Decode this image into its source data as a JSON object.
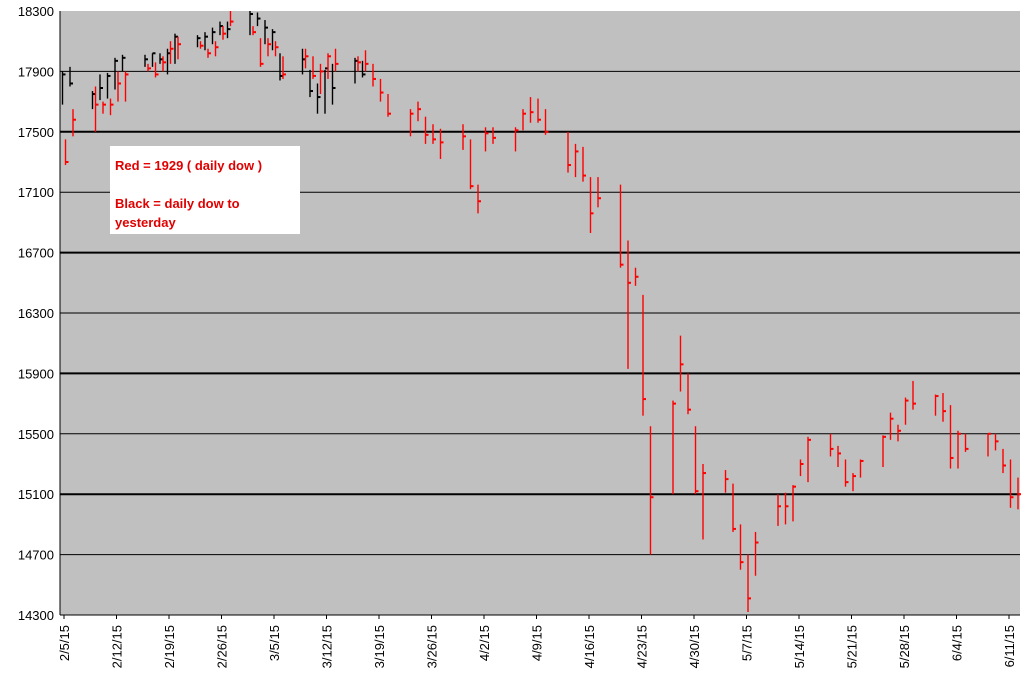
{
  "chart_data": {
    "type": "ohlc",
    "annotations": [
      "Red = 1929 ( daily dow )",
      "Black = daily dow to yesterday"
    ],
    "categories": [
      "2/5/15",
      null,
      null,
      null,
      null,
      "2/12/15",
      null,
      null,
      null,
      null,
      "2/19/15",
      null,
      null,
      null,
      null,
      "2/26/15",
      null,
      null,
      null,
      null,
      "3/5/15",
      null,
      null,
      null,
      null,
      "3/12/15",
      null,
      null,
      null,
      null,
      "3/19/15",
      null,
      null,
      null,
      null,
      "3/26/15",
      null,
      null,
      null,
      null,
      "4/2/15",
      null,
      null,
      null,
      null,
      "4/9/15",
      null,
      null,
      null,
      null,
      "4/16/15",
      null,
      null,
      null,
      null,
      "4/23/15",
      null,
      null,
      null,
      null,
      "4/30/15",
      null,
      null,
      null,
      null,
      "5/7/15",
      null,
      null,
      null,
      null,
      "5/14/15",
      null,
      null,
      null,
      null,
      "5/21/15",
      null,
      null,
      null,
      null,
      "5/28/15",
      null,
      null,
      null,
      null,
      "6/4/15",
      null,
      null,
      null,
      null,
      "6/11/15",
      null
    ],
    "series": [
      {
        "color": "#ff0000",
        "high": [
          17450,
          17650,
          17800,
          17700,
          17720,
          17900,
          17900,
          17950,
          17960,
          18000,
          18100,
          18130,
          18100,
          18050,
          18100,
          18200,
          18300,
          18200,
          18120,
          18120,
          18100,
          18000,
          18050,
          18000,
          17950,
          18020,
          18050,
          18000,
          18040,
          17950,
          17850,
          17750,
          17650,
          17700,
          17600,
          17550,
          17520,
          17550,
          17450,
          17150,
          17530,
          17530,
          17530,
          17650,
          17730,
          17720,
          17650,
          17500,
          17420,
          17400,
          17200,
          17200,
          17150,
          16780,
          16600,
          16420,
          15550,
          15720,
          16150,
          15900,
          15550,
          15300,
          15260,
          15170,
          14900,
          14700,
          14850,
          15100,
          15110,
          15160,
          15330,
          15480,
          15500,
          15420,
          15330,
          15240,
          15330,
          15490,
          15640,
          15560,
          15740,
          15850,
          15760,
          15770,
          15690,
          15520,
          15500,
          15500,
          15500,
          15400,
          15330,
          15210
        ],
        "low": [
          17280,
          17470,
          17500,
          17620,
          17610,
          17700,
          17700,
          17900,
          17860,
          17900,
          17950,
          17980,
          18050,
          17990,
          18000,
          18110,
          18200,
          18140,
          17930,
          18000,
          18000,
          17850,
          17920,
          17850,
          17750,
          17850,
          17900,
          17900,
          17900,
          17800,
          17700,
          17600,
          17470,
          17570,
          17420,
          17420,
          17320,
          17380,
          17120,
          16960,
          17370,
          17420,
          17370,
          17510,
          17560,
          17560,
          17480,
          17230,
          17200,
          17170,
          16830,
          17000,
          16600,
          15930,
          16480,
          15620,
          14700,
          15100,
          15780,
          15630,
          15100,
          14800,
          15110,
          14850,
          14600,
          14320,
          14560,
          14890,
          14900,
          14920,
          15220,
          15180,
          15350,
          15280,
          15150,
          15120,
          15210,
          15280,
          15460,
          15450,
          15560,
          15660,
          15620,
          15580,
          15270,
          15270,
          15380,
          15350,
          15390,
          15240,
          15010,
          15000
        ],
        "close": [
          17300,
          17580,
          17680,
          17680,
          17680,
          17820,
          17880,
          17920,
          17880,
          17960,
          18050,
          18080,
          18070,
          18020,
          18060,
          18150,
          18230,
          18160,
          17950,
          18080,
          18060,
          17880,
          18000,
          17870,
          17900,
          18000,
          17950,
          17960,
          17950,
          17850,
          17760,
          17620,
          17620,
          17650,
          17480,
          17450,
          17430,
          17470,
          17140,
          17040,
          17490,
          17460,
          17510,
          17620,
          17630,
          17580,
          17500,
          17280,
          17370,
          17210,
          16960,
          17060,
          16620,
          16500,
          16540,
          15730,
          15080,
          15700,
          15960,
          15660,
          15120,
          15240,
          15200,
          14870,
          14650,
          14410,
          14780,
          15020,
          15020,
          15150,
          15300,
          15460,
          15400,
          15370,
          15180,
          15220,
          15320,
          15480,
          15600,
          15520,
          15720,
          15700,
          15750,
          15650,
          15340,
          15500,
          15400,
          15500,
          15450,
          15290,
          15080,
          15100
        ]
      },
      {
        "color": "#000000",
        "high": [
          17900,
          17930,
          17770,
          17880,
          17890,
          17990,
          18010,
          18010,
          18020,
          18020,
          18050,
          18150,
          18140,
          18160,
          18190,
          18230,
          18230,
          18300,
          18290,
          18240,
          18180,
          18020,
          18050,
          17910,
          17820,
          17910,
          17950,
          17990,
          17970,
          null,
          null,
          null,
          null,
          null,
          null,
          null,
          null,
          null,
          null,
          null,
          null,
          null,
          null,
          null,
          null,
          null,
          null,
          null,
          null,
          null,
          null,
          null,
          null,
          null,
          null,
          null,
          null,
          null,
          null,
          null,
          null,
          null,
          null,
          null,
          null,
          null,
          null,
          null,
          null,
          null,
          null,
          null,
          null,
          null,
          null,
          null,
          null,
          null,
          null,
          null,
          null,
          null,
          null,
          null,
          null,
          null,
          null,
          null,
          null,
          null,
          null,
          null
        ],
        "low": [
          17680,
          17800,
          17650,
          17710,
          17720,
          17780,
          17900,
          17930,
          17930,
          17950,
          17880,
          17950,
          18060,
          18040,
          18080,
          18140,
          18120,
          18140,
          18200,
          18080,
          18040,
          17840,
          17880,
          17730,
          17620,
          17620,
          17680,
          17820,
          17860,
          null,
          null,
          null,
          null,
          null,
          null,
          null,
          null,
          null,
          null,
          null,
          null,
          null,
          null,
          null,
          null,
          null,
          null,
          null,
          null,
          null,
          null,
          null,
          null,
          null,
          null,
          null,
          null,
          null,
          null,
          null,
          null,
          null,
          null,
          null,
          null,
          null,
          null,
          null,
          null,
          null,
          null,
          null,
          null,
          null,
          null,
          null,
          null,
          null,
          null,
          null,
          null,
          null,
          null,
          null,
          null,
          null,
          null,
          null,
          null,
          null,
          null,
          null
        ],
        "close": [
          17880,
          17820,
          17750,
          17790,
          17870,
          17970,
          17990,
          17980,
          18020,
          17980,
          18020,
          18130,
          18120,
          18130,
          18160,
          18200,
          18180,
          18280,
          18250,
          18190,
          18160,
          17870,
          17980,
          17770,
          17730,
          17920,
          17790,
          17970,
          17880,
          null,
          null,
          null,
          null,
          null,
          null,
          null,
          null,
          null,
          null,
          null,
          null,
          null,
          null,
          null,
          null,
          null,
          null,
          null,
          null,
          null,
          null,
          null,
          null,
          null,
          null,
          null,
          null,
          null,
          null,
          null,
          null,
          null,
          null,
          null,
          null,
          null,
          null,
          null,
          null,
          null,
          null,
          null,
          null,
          null,
          null,
          null,
          null,
          null,
          null,
          null,
          null,
          null,
          null,
          null,
          null,
          null,
          null,
          null,
          null,
          null,
          null,
          null
        ]
      }
    ],
    "ylim": [
      14300,
      18300
    ],
    "yticks": [
      14300,
      14700,
      15100,
      15500,
      15900,
      16300,
      16700,
      17100,
      17500,
      17900,
      18300
    ],
    "grid": true
  }
}
